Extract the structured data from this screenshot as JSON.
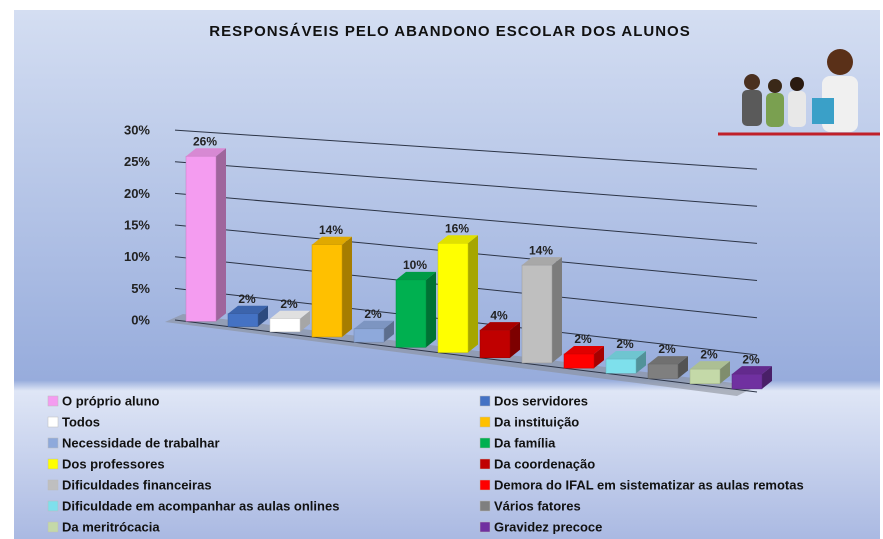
{
  "chart_data": {
    "type": "bar",
    "title": "RESPONSÁVEIS PELO ABANDONO ESCOLAR DOS ALUNOS",
    "ylim": [
      0,
      30
    ],
    "yticks": [
      {
        "value": 0,
        "label": "0%"
      },
      {
        "value": 5,
        "label": "5%"
      },
      {
        "value": 10,
        "label": "10%"
      },
      {
        "value": 15,
        "label": "15%"
      },
      {
        "value": 20,
        "label": "20%"
      },
      {
        "value": 25,
        "label": "25%"
      },
      {
        "value": 30,
        "label": "30%"
      }
    ],
    "grid": true,
    "series": [
      {
        "name": "O próprio aluno",
        "color": "#f49cf0",
        "values": [
          26
        ],
        "value_labels": [
          "26%"
        ]
      },
      {
        "name": "Dos servidores",
        "color": "#4472c4",
        "values": [
          2
        ],
        "value_labels": [
          "2%"
        ]
      },
      {
        "name": "Todos",
        "color": "#ffffff",
        "values": [
          2
        ],
        "value_labels": [
          "2%"
        ]
      },
      {
        "name": "Da instituição",
        "color": "#ffc000",
        "values": [
          14
        ],
        "value_labels": [
          "14%"
        ]
      },
      {
        "name": "Necessidade de trabalhar",
        "color": "#8ea9db",
        "values": [
          2
        ],
        "value_labels": [
          "2%"
        ]
      },
      {
        "name": "Da família",
        "color": "#00b050",
        "values": [
          10
        ],
        "value_labels": [
          "10%"
        ]
      },
      {
        "name": "Dos professores",
        "color": "#ffff00",
        "values": [
          16
        ],
        "value_labels": [
          "16%"
        ]
      },
      {
        "name": "Da coordenação",
        "color": "#c00000",
        "values": [
          4
        ],
        "value_labels": [
          "4%"
        ]
      },
      {
        "name": "Dificuldades financeiras",
        "color": "#bfbfbf",
        "values": [
          14
        ],
        "value_labels": [
          "14%"
        ]
      },
      {
        "name": "Demora do IFAL em sistematizar as aulas remotas",
        "color": "#ff0000",
        "values": [
          2
        ],
        "value_labels": [
          "2%"
        ]
      },
      {
        "name": "Dificuldade em acompanhar as aulas onlines",
        "color": "#7ee0ec",
        "values": [
          2
        ],
        "value_labels": [
          "2%"
        ]
      },
      {
        "name": "Vários fatores",
        "color": "#7f7f7f",
        "values": [
          2
        ],
        "value_labels": [
          "2%"
        ]
      },
      {
        "name": "Da meritrócacia",
        "color": "#c4d9a8",
        "values": [
          2
        ],
        "value_labels": [
          "2%"
        ]
      },
      {
        "name": "Gravidez precoce",
        "color": "#7030a0",
        "values": [
          2
        ],
        "value_labels": [
          "2%"
        ]
      }
    ]
  }
}
